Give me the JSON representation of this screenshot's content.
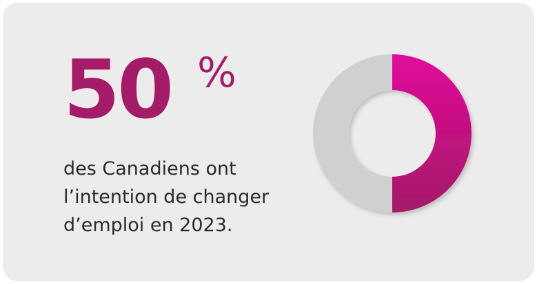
{
  "stat": {
    "value": "50",
    "unit": "%"
  },
  "caption": {
    "lines": [
      "des Canadiens ont",
      "l’intention de changer",
      "d’emploi en 2023."
    ]
  },
  "colors": {
    "accent": "#a41b68",
    "accent_bright": "#e0079a",
    "remainder": "#d0d0d0",
    "background": "#ececec",
    "text": "#2b2b2b"
  },
  "chart_data": {
    "type": "pie",
    "variant": "donut",
    "categories": [
      "",
      ""
    ],
    "values": [
      50,
      50
    ],
    "title": "",
    "highlight_index": 0
  }
}
